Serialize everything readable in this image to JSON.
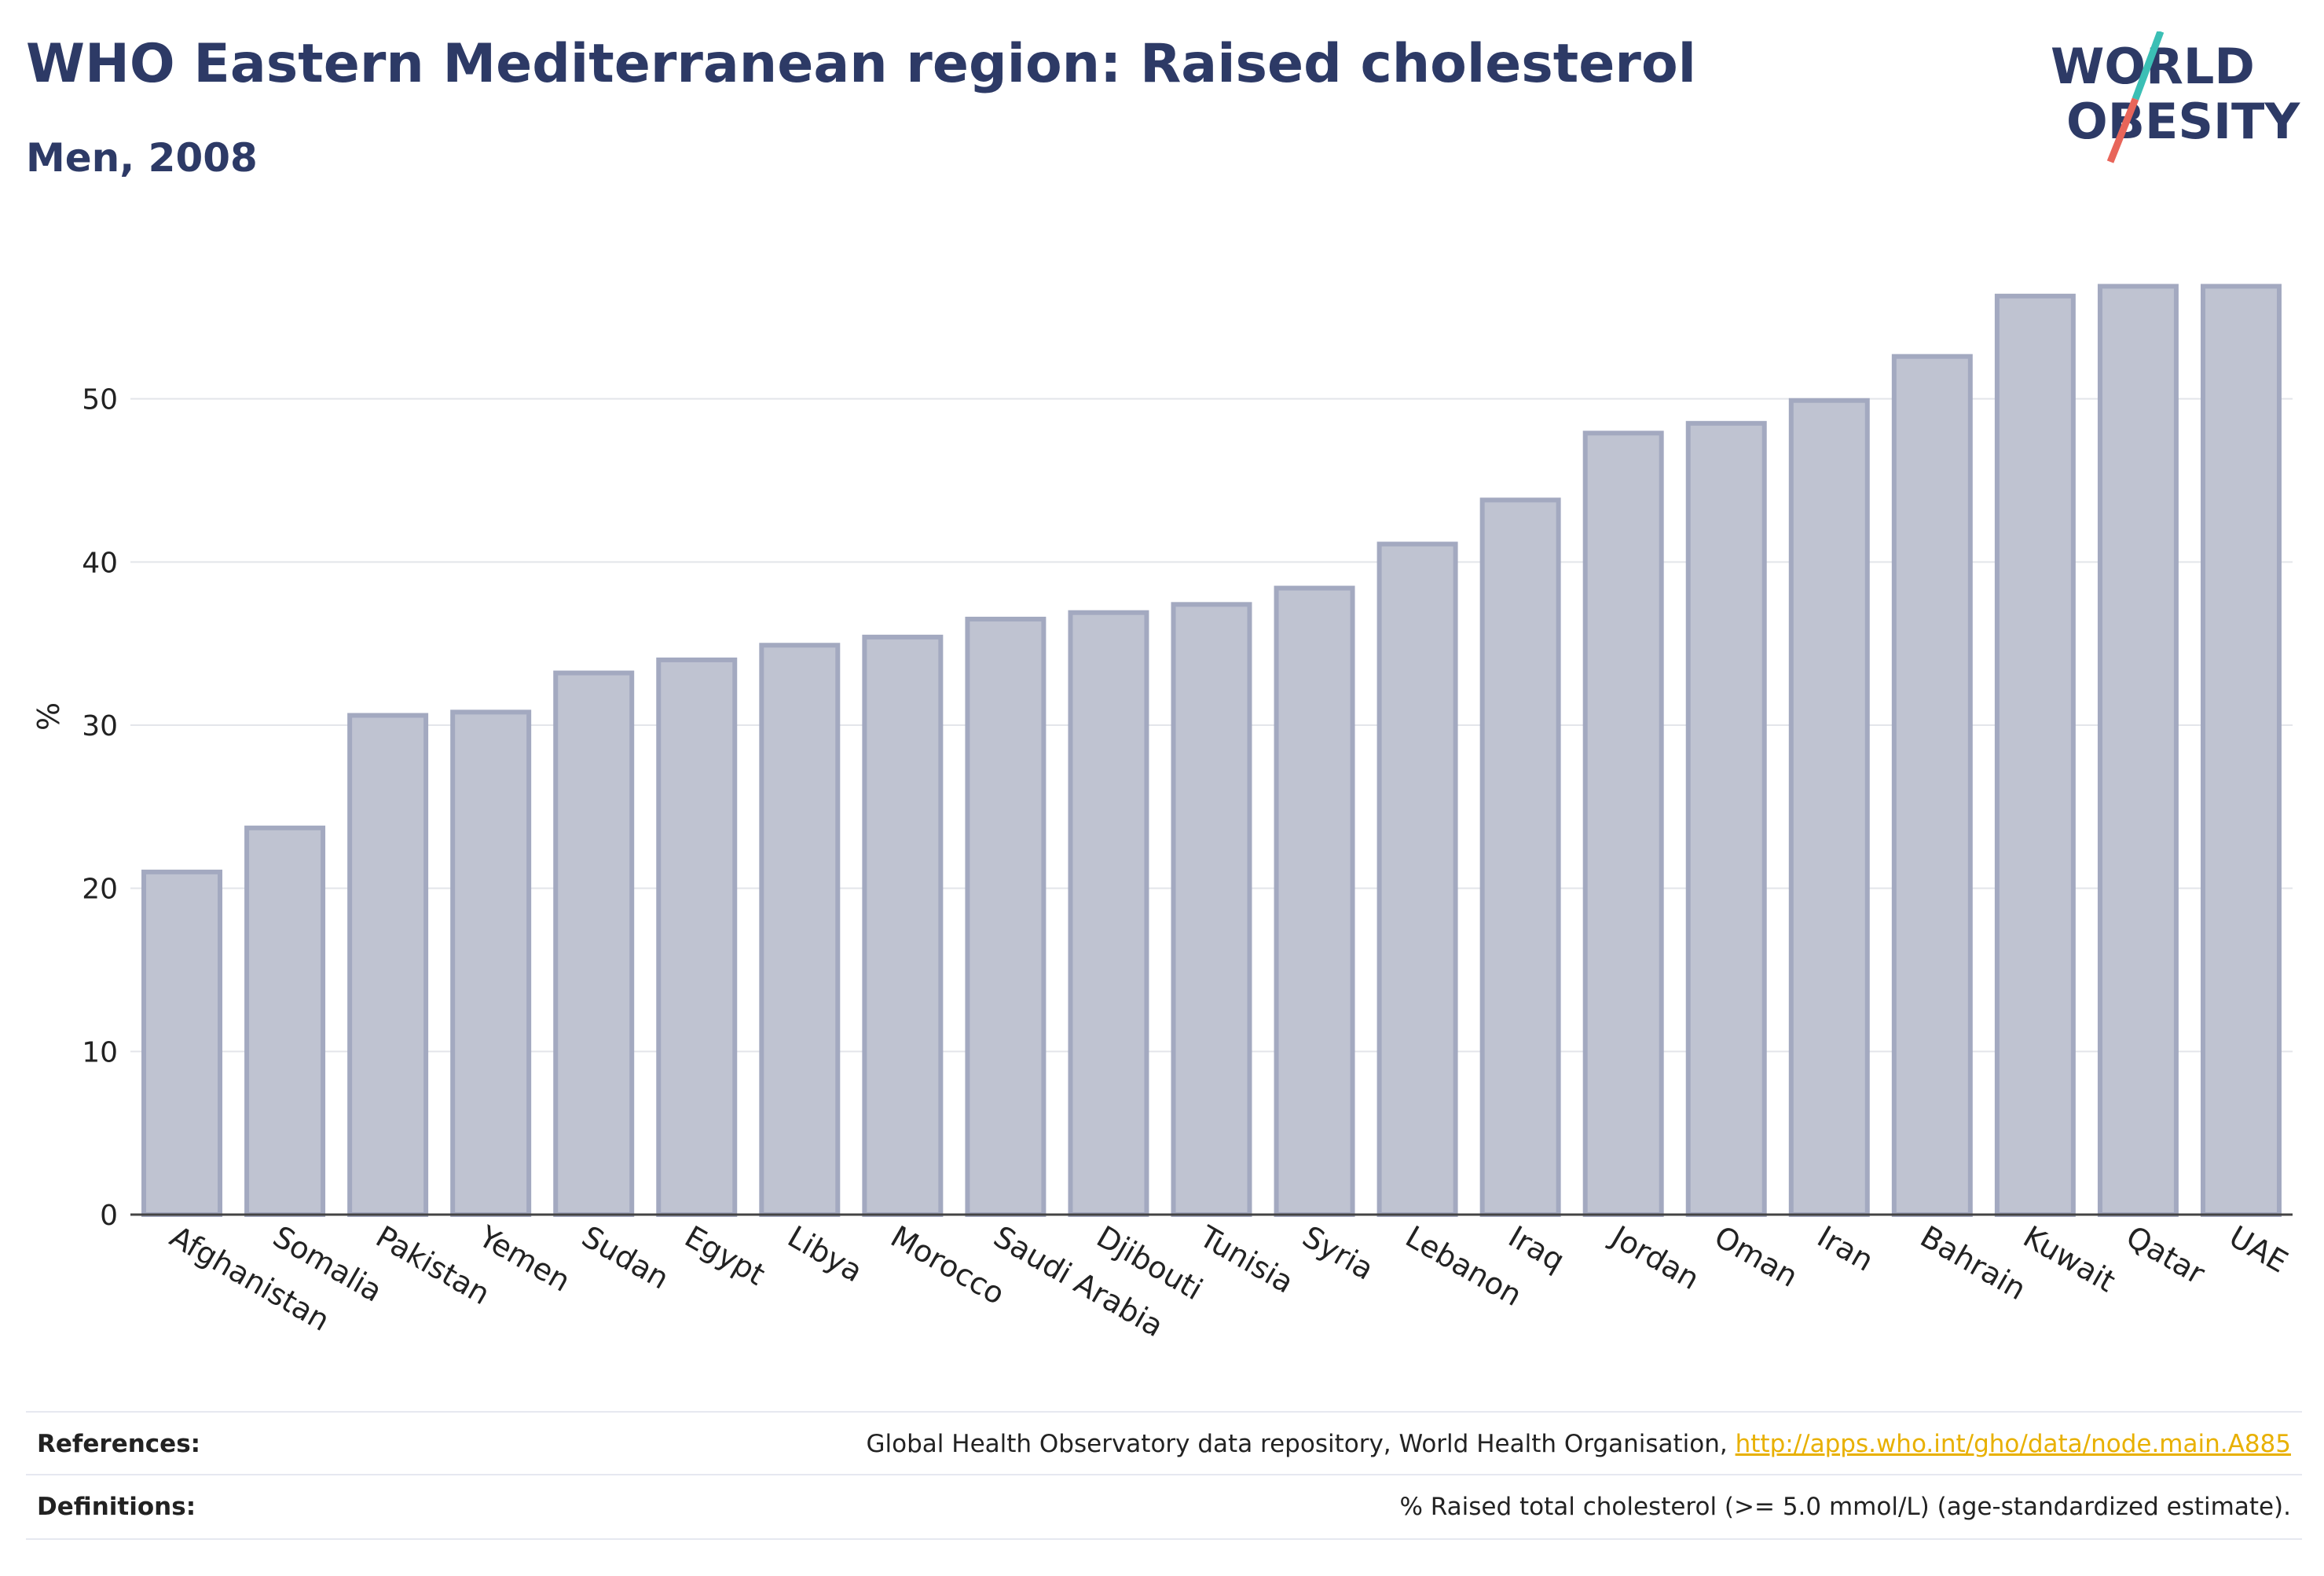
{
  "header": {
    "title": "WHO Eastern Mediterranean region: Raised cholesterol",
    "subtitle": "Men, 2008"
  },
  "logo": {
    "line1": "WORLD",
    "line2": "OBESITY",
    "colors": {
      "text": "#2d3a66",
      "slash_top": "#3bbfb5",
      "slash_bottom": "#e8655a"
    }
  },
  "chart_data": {
    "type": "bar",
    "categories": [
      "Afghanistan",
      "Somalia",
      "Pakistan",
      "Yemen",
      "Sudan",
      "Egypt",
      "Libya",
      "Morocco",
      "Saudi Arabia",
      "Djibouti",
      "Tunisia",
      "Syria",
      "Lebanon",
      "Iraq",
      "Jordan",
      "Oman",
      "Iran",
      "Bahrain",
      "Kuwait",
      "Qatar",
      "UAE"
    ],
    "values": [
      21.0,
      23.7,
      30.6,
      30.8,
      33.2,
      34.0,
      34.9,
      35.4,
      36.5,
      36.9,
      37.4,
      38.4,
      41.1,
      43.8,
      47.9,
      48.5,
      49.9,
      52.6,
      56.3,
      56.9,
      56.9
    ],
    "ylabel": "%",
    "xlabel": "",
    "ylim": [
      0,
      60
    ],
    "yticks": [
      0,
      10,
      20,
      30,
      40,
      50
    ],
    "grid": true,
    "bar_fill": "#bfc3d1",
    "bar_stroke": "#a3a9c0"
  },
  "footer": {
    "references_label": "References:",
    "references_text": "Global Health Observatory data repository, World Health Organisation, ",
    "references_link": "http://apps.who.int/gho/data/node.main.A885",
    "definitions_label": "Definitions:",
    "definitions_text": "% Raised total cholesterol (>= 5.0 mmol/L) (age-standardized estimate)."
  }
}
